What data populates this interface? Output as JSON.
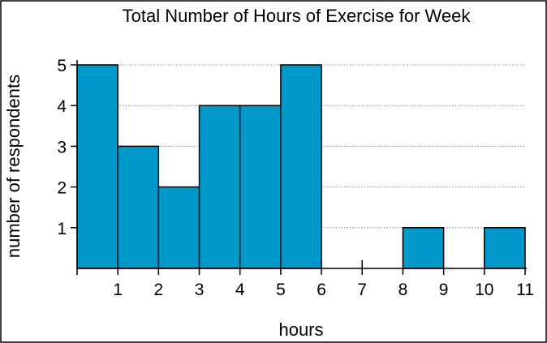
{
  "chart_data": {
    "type": "bar",
    "title": "Total Number of Hours of Exercise for Week",
    "xlabel": "hours",
    "ylabel": "number of respondents",
    "bins": [
      {
        "from": 0,
        "to": 1,
        "value": 5
      },
      {
        "from": 1,
        "to": 2,
        "value": 3
      },
      {
        "from": 2,
        "to": 3,
        "value": 2
      },
      {
        "from": 3,
        "to": 4,
        "value": 4
      },
      {
        "from": 4,
        "to": 5,
        "value": 4
      },
      {
        "from": 5,
        "to": 6,
        "value": 5
      },
      {
        "from": 6,
        "to": 7,
        "value": 0
      },
      {
        "from": 7,
        "to": 8,
        "value": 0
      },
      {
        "from": 8,
        "to": 9,
        "value": 1
      },
      {
        "from": 9,
        "to": 10,
        "value": 0
      },
      {
        "from": 10,
        "to": 11,
        "value": 1
      }
    ],
    "xlim": [
      0,
      11
    ],
    "ylim": [
      0,
      5
    ],
    "xticks": [
      "1",
      "2",
      "3",
      "4",
      "5",
      "6",
      "7",
      "8",
      "9",
      "10",
      "11"
    ],
    "yticks": [
      "1",
      "2",
      "3",
      "4",
      "5"
    ],
    "grid": "horizontal-dotted",
    "colors": {
      "bar": "#0099cc",
      "bar_edge": "#000000",
      "grid": "#888888"
    }
  }
}
